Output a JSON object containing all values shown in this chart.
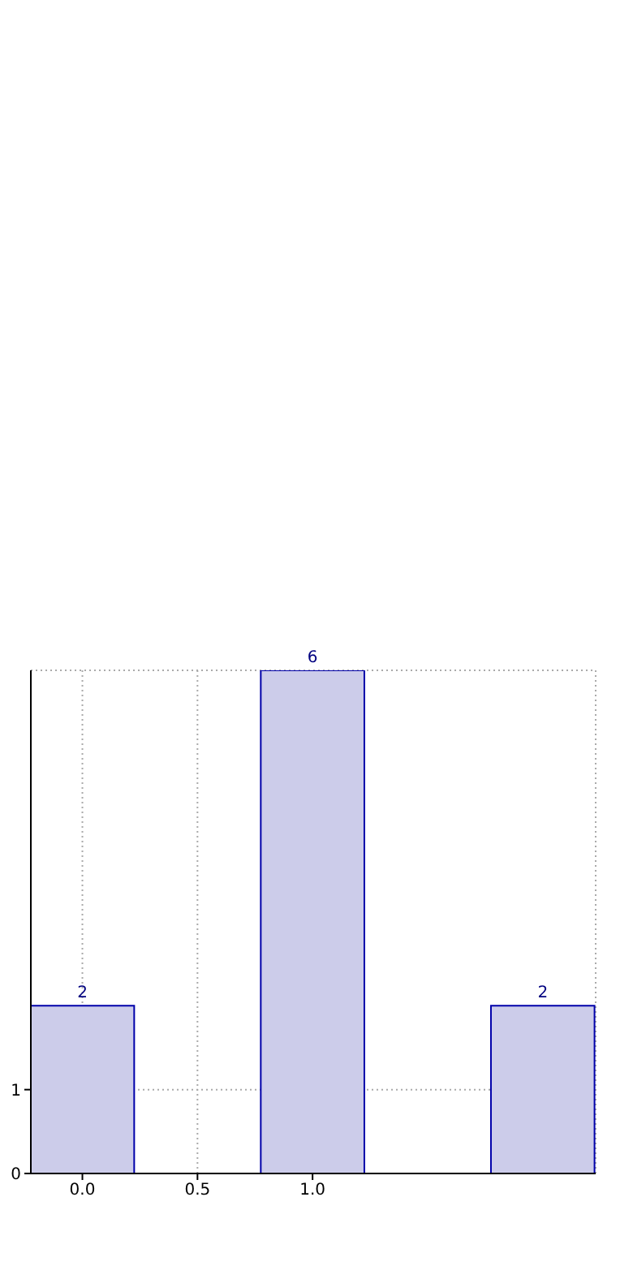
{
  "chart_data": {
    "type": "bar",
    "x": [
      0,
      1,
      2
    ],
    "values": [
      2,
      6,
      2
    ],
    "color": "#ccccea",
    "xlim": [
      -0.224,
      2.23
    ],
    "xticks": [
      {
        "value": 0,
        "label": "0.0"
      },
      {
        "value": 0.5,
        "label": "0.5"
      },
      {
        "value": 1,
        "label": "1.0"
      }
    ],
    "ylim": [
      0,
      6
    ],
    "yticks": [
      0,
      1
    ],
    "grid": true,
    "data_labels": true
  }
}
